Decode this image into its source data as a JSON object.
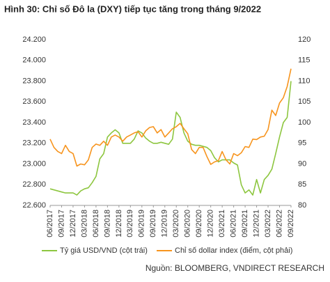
{
  "chart_data": {
    "type": "line",
    "title": "Hình 30: Chỉ số Đô la (DXY) tiếp tục tăng trong tháng 9/2022",
    "source": "Nguồn: BLOOMBERG, VNDIRECT RESEARCH",
    "categories": [
      "06/2017",
      null,
      null,
      "09/2017",
      null,
      null,
      "12/2017",
      null,
      null,
      "03/2018",
      null,
      null,
      "06/2018",
      null,
      null,
      "09/2018",
      null,
      null,
      "12/2018",
      null,
      null,
      "03/2019",
      null,
      null,
      "06/2019",
      null,
      null,
      "09/2019",
      null,
      null,
      "12/2019",
      null,
      null,
      "03/2020",
      null,
      null,
      "06/2020",
      null,
      null,
      "09/2020",
      null,
      null,
      "12/2020",
      null,
      null,
      "03/2021",
      null,
      null,
      "06/2021",
      null,
      null,
      "09/2021",
      null,
      null,
      "12/2021",
      null,
      null,
      "03/2022",
      null,
      null,
      "06/2022",
      null,
      null,
      "09/2022"
    ],
    "series": [
      {
        "name": "Tỷ giá USD/VND (cột trái)",
        "color": "#8dc63f",
        "axis": "y",
        "values": [
          22760,
          22750,
          22740,
          22730,
          22720,
          22720,
          22720,
          22700,
          22740,
          22760,
          22770,
          22820,
          22880,
          23050,
          23100,
          23260,
          23300,
          23330,
          23300,
          23200,
          23200,
          23200,
          23240,
          23320,
          23300,
          23250,
          23220,
          23200,
          23200,
          23210,
          23200,
          23190,
          23240,
          23500,
          23450,
          23300,
          23220,
          23190,
          23180,
          23180,
          23170,
          23160,
          23130,
          23060,
          23020,
          23040,
          23040,
          23040,
          23010,
          22990,
          22800,
          22720,
          22750,
          22700,
          22850,
          22720,
          22850,
          22890,
          22950,
          23100,
          23260,
          23400,
          23450,
          23800
        ]
      },
      {
        "name": "Chỉ số dollar index (điểm, cột phải)",
        "color": "#f7941d",
        "axis": "y2",
        "values": [
          96,
          94,
          93,
          92.5,
          94.5,
          93,
          92.5,
          89.5,
          90,
          89.8,
          91,
          94,
          94.8,
          94.5,
          95.5,
          94.5,
          96.5,
          97,
          96.5,
          95.5,
          96.5,
          97,
          97.5,
          97.8,
          96.5,
          98,
          98.8,
          99,
          97.5,
          98.3,
          96.5,
          97.5,
          98.5,
          99,
          99.8,
          98.5,
          97.3,
          93.5,
          92.5,
          94,
          94,
          91.8,
          89.9,
          90.5,
          90.8,
          93,
          91,
          90,
          92.5,
          92,
          92.7,
          94.2,
          94,
          96,
          95.9,
          96.5,
          96.7,
          98.3,
          103,
          101.7,
          104.7,
          106,
          108.7,
          113
        ]
      }
    ],
    "ylim": [
      22600,
      24200
    ],
    "yticks": [
      {
        "value": 22600,
        "label": "22.600"
      },
      {
        "value": 22800,
        "label": "22.800"
      },
      {
        "value": 23000,
        "label": "23.000"
      },
      {
        "value": 23200,
        "label": "23.200"
      },
      {
        "value": 23400,
        "label": "23.400"
      },
      {
        "value": 23600,
        "label": "23.600"
      },
      {
        "value": 23800,
        "label": "23.800"
      },
      {
        "value": 24000,
        "label": "24.000"
      },
      {
        "value": 24200,
        "label": "24.200"
      }
    ],
    "y2lim": [
      80,
      120
    ],
    "y2ticks": [
      80,
      85,
      90,
      95,
      100,
      105,
      110,
      115,
      120
    ],
    "legend": "bottom"
  }
}
